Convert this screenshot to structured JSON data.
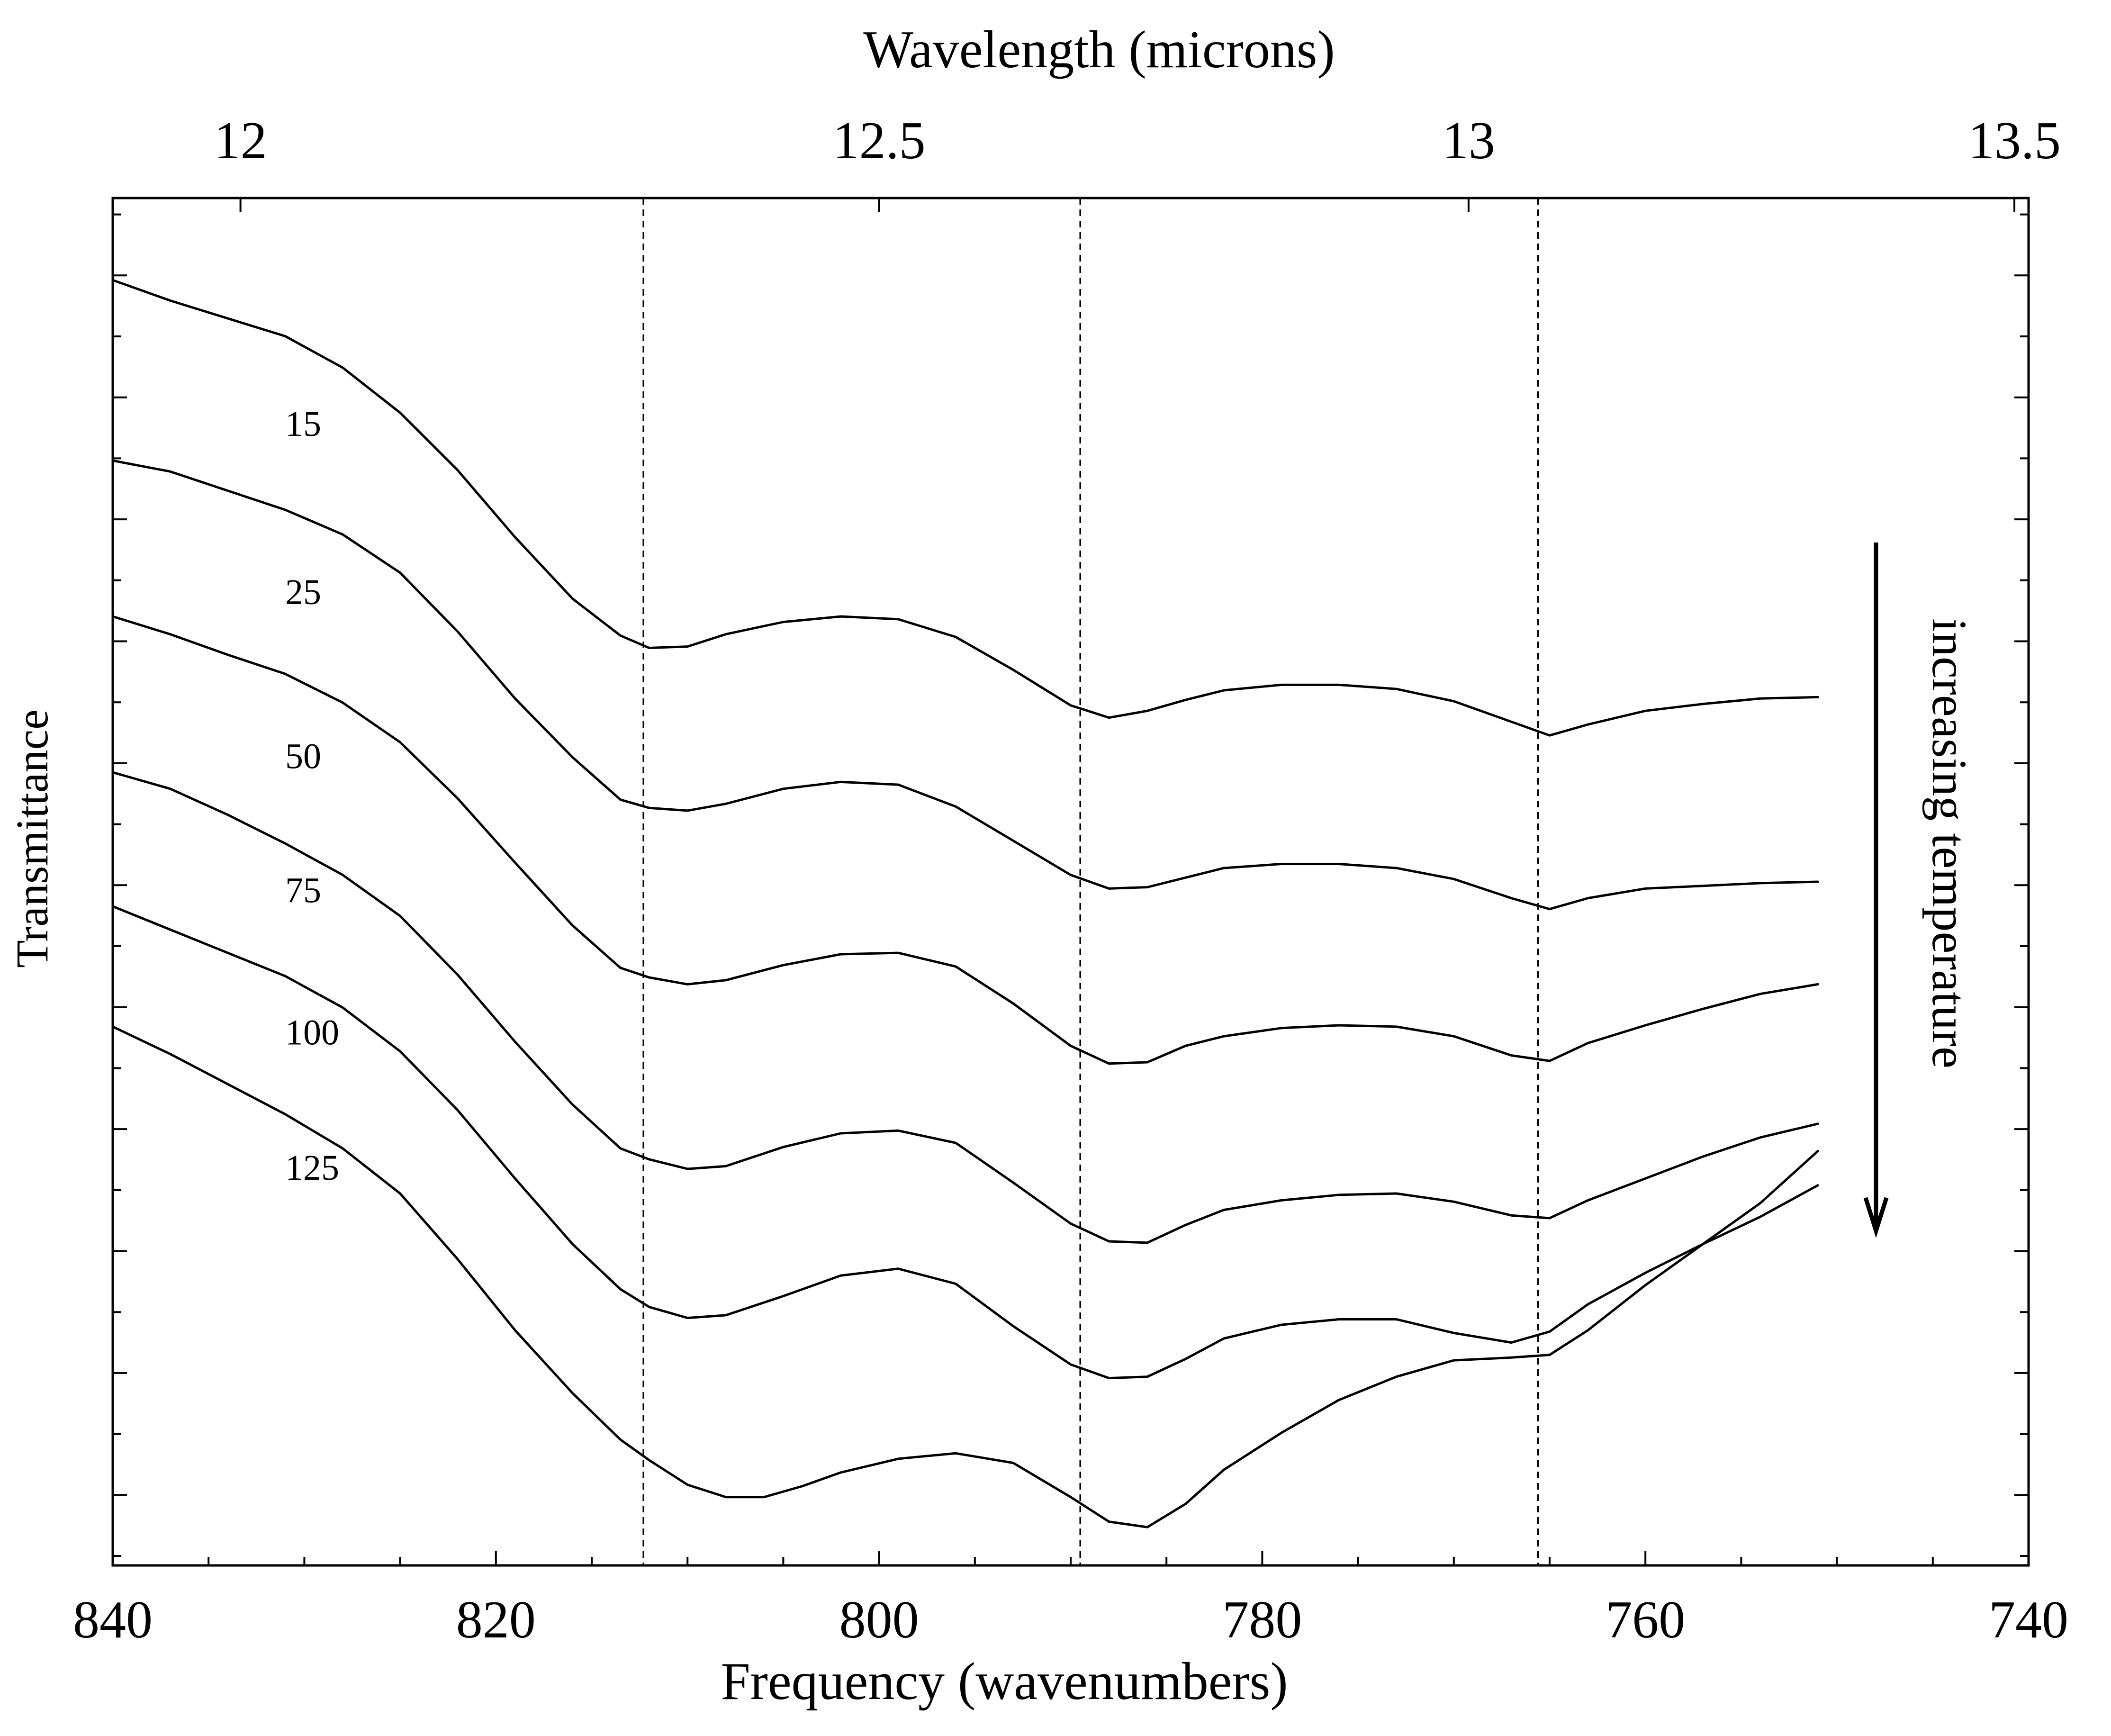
{
  "chart_data": {
    "type": "line",
    "xlabel": "Frequency (wavenumbers)",
    "x2label": "Wavelength (microns)",
    "ylabel": "Transmittance",
    "xlim": [
      840,
      740
    ],
    "ylim": [
      0,
      1
    ],
    "x_ticks": [
      840,
      820,
      800,
      780,
      760,
      740
    ],
    "x2_ticks": [
      12,
      12.5,
      13,
      13.5
    ],
    "y_tick_labels_shown": false,
    "grid": false,
    "reference_lines_x": [
      812.3,
      789.5,
      765.6
    ],
    "annotation": "increasing temperature",
    "series_labels_at_x": 831,
    "series": [
      {
        "name": "15",
        "label_y": 0.826,
        "points": [
          [
            840,
            0.94
          ],
          [
            837,
            0.925
          ],
          [
            834,
            0.912
          ],
          [
            831,
            0.899
          ],
          [
            828,
            0.876
          ],
          [
            825,
            0.843
          ],
          [
            822,
            0.801
          ],
          [
            819,
            0.752
          ],
          [
            816,
            0.707
          ],
          [
            813.5,
            0.68
          ],
          [
            812,
            0.671
          ],
          [
            810,
            0.672
          ],
          [
            808,
            0.681
          ],
          [
            805,
            0.69
          ],
          [
            802,
            0.694
          ],
          [
            799,
            0.692
          ],
          [
            796,
            0.679
          ],
          [
            793,
            0.655
          ],
          [
            790,
            0.629
          ],
          [
            788,
            0.62
          ],
          [
            786,
            0.625
          ],
          [
            784,
            0.633
          ],
          [
            782,
            0.64
          ],
          [
            779,
            0.644
          ],
          [
            776,
            0.644
          ],
          [
            773,
            0.641
          ],
          [
            770,
            0.632
          ],
          [
            767,
            0.617
          ],
          [
            765,
            0.607
          ],
          [
            763,
            0.615
          ],
          [
            760,
            0.625
          ],
          [
            757,
            0.63
          ],
          [
            754,
            0.634
          ],
          [
            751,
            0.635
          ]
        ]
      },
      {
        "name": "25",
        "label_y": 0.703,
        "points": [
          [
            840,
            0.808
          ],
          [
            837,
            0.8
          ],
          [
            834,
            0.786
          ],
          [
            831,
            0.772
          ],
          [
            828,
            0.754
          ],
          [
            825,
            0.726
          ],
          [
            822,
            0.683
          ],
          [
            819,
            0.634
          ],
          [
            816,
            0.591
          ],
          [
            813.5,
            0.56
          ],
          [
            812,
            0.554
          ],
          [
            810,
            0.552
          ],
          [
            808,
            0.557
          ],
          [
            805,
            0.568
          ],
          [
            802,
            0.573
          ],
          [
            799,
            0.571
          ],
          [
            796,
            0.555
          ],
          [
            793,
            0.53
          ],
          [
            790,
            0.505
          ],
          [
            788,
            0.495
          ],
          [
            786,
            0.496
          ],
          [
            784,
            0.503
          ],
          [
            782,
            0.51
          ],
          [
            779,
            0.513
          ],
          [
            776,
            0.513
          ],
          [
            773,
            0.51
          ],
          [
            770,
            0.502
          ],
          [
            767,
            0.488
          ],
          [
            765,
            0.48
          ],
          [
            763,
            0.488
          ],
          [
            760,
            0.495
          ],
          [
            757,
            0.497
          ],
          [
            754,
            0.499
          ],
          [
            751,
            0.5
          ]
        ]
      },
      {
        "name": "50",
        "label_y": 0.583,
        "points": [
          [
            840,
            0.694
          ],
          [
            837,
            0.681
          ],
          [
            834,
            0.666
          ],
          [
            831,
            0.652
          ],
          [
            828,
            0.631
          ],
          [
            825,
            0.602
          ],
          [
            822,
            0.561
          ],
          [
            819,
            0.514
          ],
          [
            816,
            0.468
          ],
          [
            813.5,
            0.437
          ],
          [
            812,
            0.43
          ],
          [
            810,
            0.425
          ],
          [
            808,
            0.428
          ],
          [
            805,
            0.439
          ],
          [
            802,
            0.447
          ],
          [
            799,
            0.448
          ],
          [
            796,
            0.438
          ],
          [
            793,
            0.411
          ],
          [
            790,
            0.38
          ],
          [
            788,
            0.367
          ],
          [
            786,
            0.368
          ],
          [
            784,
            0.38
          ],
          [
            782,
            0.387
          ],
          [
            779,
            0.393
          ],
          [
            776,
            0.395
          ],
          [
            773,
            0.394
          ],
          [
            770,
            0.387
          ],
          [
            767,
            0.373
          ],
          [
            765,
            0.369
          ],
          [
            763,
            0.382
          ],
          [
            760,
            0.395
          ],
          [
            757,
            0.407
          ],
          [
            754,
            0.418
          ],
          [
            751,
            0.425
          ]
        ]
      },
      {
        "name": "75",
        "label_y": 0.485,
        "points": [
          [
            840,
            0.58
          ],
          [
            837,
            0.568
          ],
          [
            834,
            0.549
          ],
          [
            831,
            0.528
          ],
          [
            828,
            0.505
          ],
          [
            825,
            0.475
          ],
          [
            822,
            0.432
          ],
          [
            819,
            0.383
          ],
          [
            816,
            0.337
          ],
          [
            813.5,
            0.305
          ],
          [
            812,
            0.297
          ],
          [
            810,
            0.29
          ],
          [
            808,
            0.292
          ],
          [
            805,
            0.306
          ],
          [
            802,
            0.316
          ],
          [
            799,
            0.318
          ],
          [
            796,
            0.309
          ],
          [
            793,
            0.28
          ],
          [
            790,
            0.25
          ],
          [
            788,
            0.237
          ],
          [
            786,
            0.236
          ],
          [
            784,
            0.249
          ],
          [
            782,
            0.26
          ],
          [
            779,
            0.267
          ],
          [
            776,
            0.271
          ],
          [
            773,
            0.272
          ],
          [
            770,
            0.266
          ],
          [
            767,
            0.256
          ],
          [
            765,
            0.254
          ],
          [
            763,
            0.267
          ],
          [
            760,
            0.283
          ],
          [
            757,
            0.299
          ],
          [
            754,
            0.313
          ],
          [
            751,
            0.323
          ]
        ]
      },
      {
        "name": "100",
        "label_y": 0.381,
        "points": [
          [
            840,
            0.482
          ],
          [
            837,
            0.465
          ],
          [
            834,
            0.448
          ],
          [
            831,
            0.431
          ],
          [
            828,
            0.408
          ],
          [
            825,
            0.376
          ],
          [
            822,
            0.333
          ],
          [
            819,
            0.283
          ],
          [
            816,
            0.235
          ],
          [
            813.5,
            0.202
          ],
          [
            812,
            0.189
          ],
          [
            810,
            0.181
          ],
          [
            808,
            0.183
          ],
          [
            805,
            0.197
          ],
          [
            802,
            0.212
          ],
          [
            799,
            0.217
          ],
          [
            796,
            0.206
          ],
          [
            793,
            0.175
          ],
          [
            790,
            0.147
          ],
          [
            788,
            0.137
          ],
          [
            786,
            0.138
          ],
          [
            784,
            0.151
          ],
          [
            782,
            0.166
          ],
          [
            779,
            0.176
          ],
          [
            776,
            0.18
          ],
          [
            773,
            0.18
          ],
          [
            770,
            0.17
          ],
          [
            767,
            0.163
          ],
          [
            765,
            0.171
          ],
          [
            763,
            0.191
          ],
          [
            760,
            0.214
          ],
          [
            757,
            0.235
          ],
          [
            754,
            0.255
          ],
          [
            751,
            0.278
          ]
        ]
      },
      {
        "name": "125",
        "label_y": 0.282,
        "points": [
          [
            840,
            0.394
          ],
          [
            837,
            0.374
          ],
          [
            834,
            0.352
          ],
          [
            831,
            0.33
          ],
          [
            828,
            0.305
          ],
          [
            825,
            0.272
          ],
          [
            822,
            0.224
          ],
          [
            819,
            0.172
          ],
          [
            816,
            0.126
          ],
          [
            813.5,
            0.092
          ],
          [
            812,
            0.077
          ],
          [
            810,
            0.059
          ],
          [
            808,
            0.05
          ],
          [
            806,
            0.05
          ],
          [
            804,
            0.058
          ],
          [
            802,
            0.068
          ],
          [
            799,
            0.078
          ],
          [
            796,
            0.082
          ],
          [
            793,
            0.075
          ],
          [
            790,
            0.05
          ],
          [
            788,
            0.032
          ],
          [
            786,
            0.028
          ],
          [
            784,
            0.045
          ],
          [
            782,
            0.07
          ],
          [
            779,
            0.097
          ],
          [
            776,
            0.121
          ],
          [
            773,
            0.138
          ],
          [
            770,
            0.15
          ],
          [
            767,
            0.152
          ],
          [
            765,
            0.154
          ],
          [
            763,
            0.172
          ],
          [
            760,
            0.205
          ],
          [
            757,
            0.235
          ],
          [
            754,
            0.265
          ],
          [
            751,
            0.303
          ]
        ]
      }
    ]
  }
}
